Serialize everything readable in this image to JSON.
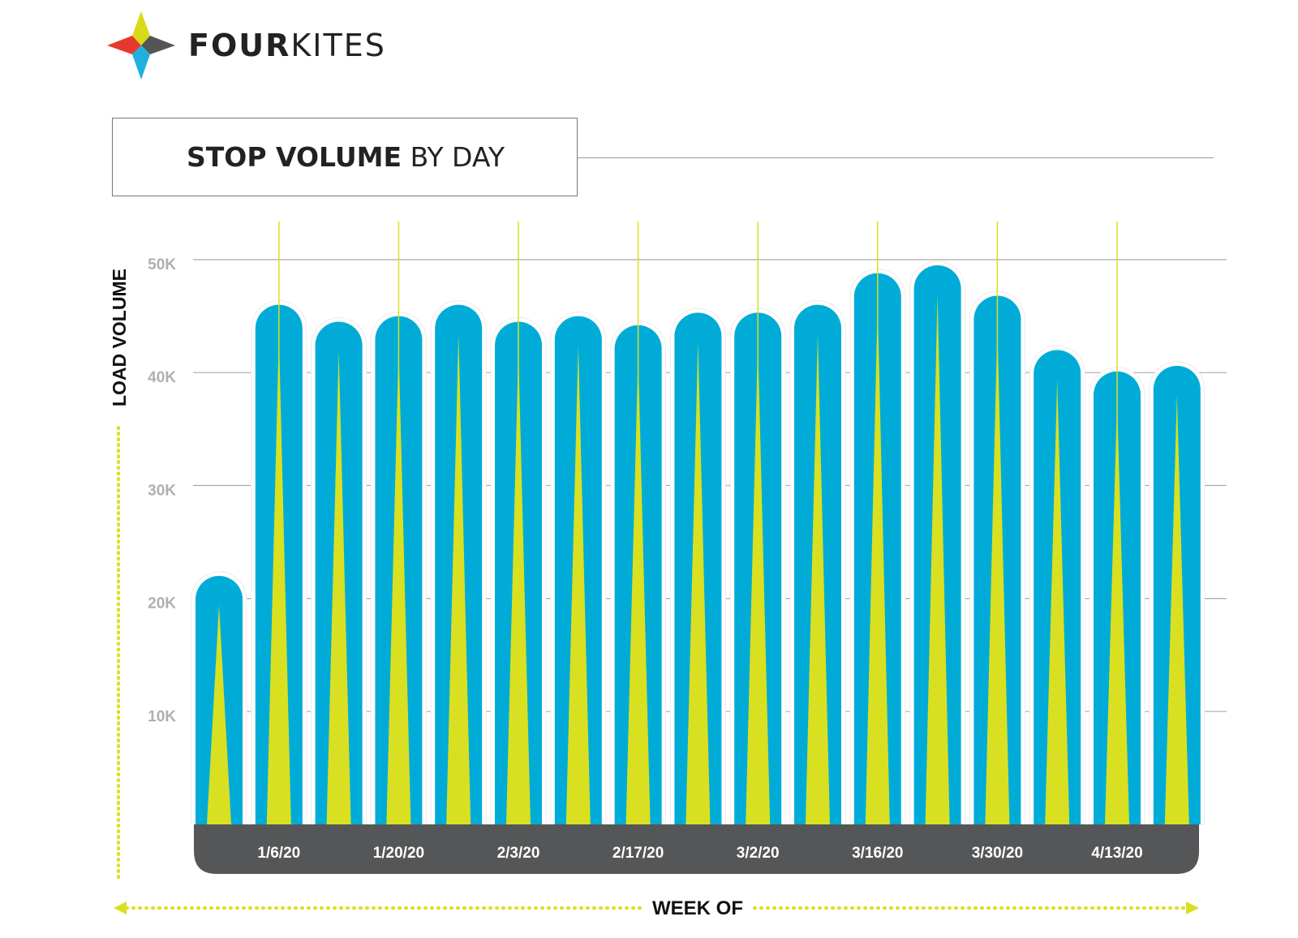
{
  "brand": {
    "name_bold": "FOUR",
    "name_light": "KITES",
    "logo_colors": {
      "top": "#d9d91a",
      "right": "#555555",
      "bottom": "#1fb0e0",
      "left": "#e8372c"
    }
  },
  "chart_data": {
    "type": "bar",
    "title_bold": "STOP VOLUME",
    "title_light": "BY DAY",
    "ylabel": "LOAD VOLUME",
    "xlabel": "WEEK OF",
    "ylim": [
      0,
      50000
    ],
    "yticks": [
      "10K",
      "20K",
      "30K",
      "40K",
      "50K"
    ],
    "ytick_values": [
      10000,
      20000,
      30000,
      40000,
      50000
    ],
    "x_tick_labels": [
      "1/6/20",
      "1/20/20",
      "2/3/20",
      "2/17/20",
      "3/2/20",
      "3/16/20",
      "3/30/20",
      "4/13/20"
    ],
    "x_tick_bar_index": [
      1,
      3,
      5,
      7,
      9,
      11,
      13,
      15
    ],
    "values": [
      22000,
      46000,
      44500,
      45000,
      46000,
      44500,
      45000,
      44200,
      45300,
      45300,
      46000,
      48800,
      49500,
      46800,
      42000,
      40100,
      40600
    ],
    "colors": {
      "bar": "#00acd7",
      "accent": "#d9e021",
      "axis_band": "#555657",
      "grid": "#aaaaaa",
      "tick_text": "#b0b0b0"
    },
    "grid": true
  }
}
